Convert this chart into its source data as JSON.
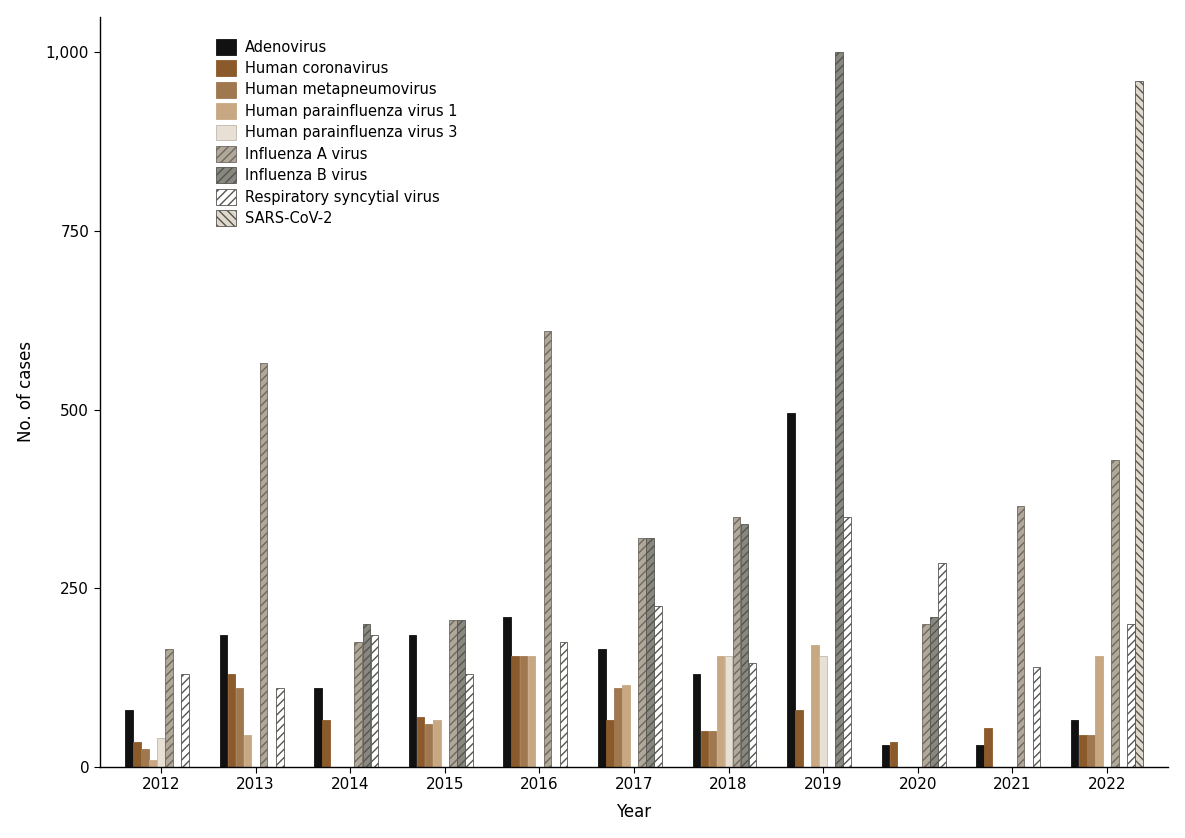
{
  "years": [
    2012,
    2013,
    2014,
    2015,
    2016,
    2017,
    2018,
    2019,
    2020,
    2021,
    2022
  ],
  "series_names": [
    "Adenovirus",
    "Human coronavirus",
    "Human metapneumovirus",
    "Human parainfluenza virus 1",
    "Human parainfluenza virus 3",
    "Influenza A virus",
    "Influenza B virus",
    "Respiratory syncytial virus",
    "SARS-CoV-2"
  ],
  "series_data": {
    "Adenovirus": [
      80,
      185,
      110,
      185,
      210,
      165,
      130,
      495,
      30,
      30,
      65
    ],
    "Human coronavirus": [
      35,
      130,
      65,
      70,
      155,
      65,
      50,
      80,
      35,
      55,
      45
    ],
    "Human metapneumovirus": [
      25,
      110,
      0,
      60,
      155,
      110,
      50,
      0,
      0,
      0,
      45
    ],
    "Human parainfluenza virus 1": [
      10,
      45,
      0,
      65,
      155,
      115,
      155,
      170,
      0,
      0,
      155
    ],
    "Human parainfluenza virus 3": [
      40,
      0,
      0,
      0,
      0,
      0,
      155,
      155,
      0,
      0,
      0
    ],
    "Influenza A virus": [
      165,
      565,
      175,
      205,
      610,
      320,
      350,
      0,
      200,
      365,
      430
    ],
    "Influenza B virus": [
      0,
      0,
      200,
      205,
      0,
      320,
      340,
      1000,
      210,
      0,
      0
    ],
    "Respiratory syncytial virus": [
      130,
      110,
      185,
      130,
      175,
      225,
      145,
      350,
      285,
      140,
      200
    ],
    "SARS-CoV-2": [
      0,
      0,
      0,
      0,
      0,
      0,
      0,
      0,
      0,
      0,
      960
    ]
  },
  "bar_facecolors": {
    "Adenovirus": "#111111",
    "Human coronavirus": "#8B5A2B",
    "Human metapneumovirus": "#A07850",
    "Human parainfluenza virus 1": "#C8A882",
    "Human parainfluenza virus 3": "#E8E0D5",
    "Influenza A virus": "#B0A898",
    "Influenza B virus": "#888880",
    "Respiratory syncytial virus": "#FFFFFF",
    "SARS-CoV-2": "#E0D8CC"
  },
  "bar_edgecolors": {
    "Adenovirus": "#111111",
    "Human coronavirus": "#8B5A2B",
    "Human metapneumovirus": "#A07850",
    "Human parainfluenza virus 1": "#C8A882",
    "Human parainfluenza virus 3": "#C0B8AC",
    "Influenza A virus": "#706860",
    "Influenza B virus": "#555550",
    "Respiratory syncytial virus": "#555550",
    "SARS-CoV-2": "#555550"
  },
  "hatch_patterns": {
    "Adenovirus": "",
    "Human coronavirus": "",
    "Human metapneumovirus": "",
    "Human parainfluenza virus 1": "",
    "Human parainfluenza virus 3": "",
    "Influenza A virus": "////",
    "Influenza B virus": "////",
    "Respiratory syncytial virus": "////",
    "SARS-CoV-2": "\\\\\\\\"
  },
  "ylabel": "No. of cases",
  "xlabel": "Year",
  "ylim": [
    0,
    1050
  ],
  "yticks": [
    0,
    250,
    500,
    750,
    1000
  ],
  "yticklabels": [
    "0",
    "250",
    "500",
    "750",
    "1,000"
  ],
  "bar_width": 0.085,
  "figsize": [
    11.85,
    8.38
  ],
  "dpi": 100
}
